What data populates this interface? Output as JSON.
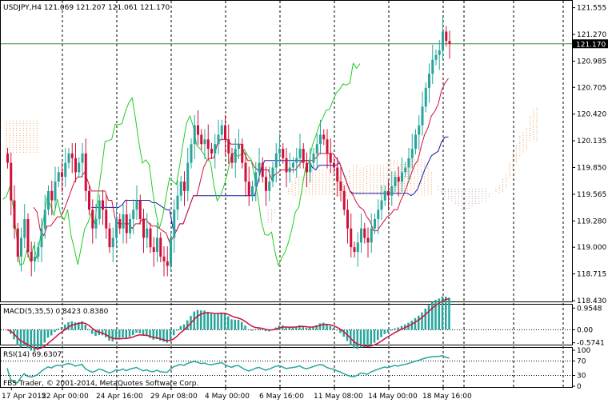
{
  "window": {
    "symbol_line": "USDJPY,H4  121.069 121.207 121.061 121.170",
    "copyright": "FBS Trader, © 2001-2014, MetaQuotes Software Corp."
  },
  "colors": {
    "background": "#ffffff",
    "bull_candle": "#26a69a",
    "bear_candle": "#d0103a",
    "tenkan": "#d0103a",
    "kijun": "#1a1aa8",
    "chikou": "#22cc22",
    "cloud_a": "#e89a5a",
    "cloud_b": "#c8a0a0",
    "macd_hist": "#26a69a",
    "macd_signal": "#d0103a",
    "rsi_line": "#26a69a",
    "current_price_line": "#3a8a3a",
    "grid": "#000000"
  },
  "price_panel": {
    "current_price": "121.170",
    "current_price_value": 121.17,
    "price_min": 118.43,
    "price_max": 121.62,
    "price_labels": [
      "121.555",
      "121.270",
      "120.985",
      "120.705",
      "120.420",
      "120.135",
      "119.850",
      "119.565",
      "119.280",
      "119.000",
      "118.715",
      "118.430"
    ],
    "price_label_values": [
      121.555,
      121.27,
      120.985,
      120.705,
      120.42,
      120.135,
      119.85,
      119.565,
      119.28,
      119.0,
      118.715,
      118.43
    ]
  },
  "macd_panel": {
    "label": "MACD(5,35,5) 0.8423 0.8380",
    "axis_labels": [
      "0.9548",
      "0.00",
      "-0.5741"
    ],
    "axis_values": [
      0.9548,
      0.0,
      -0.5741
    ],
    "min": -0.62,
    "max": 1.0
  },
  "rsi_panel": {
    "label": "RSI(14) 69.6307",
    "axis_labels": [
      "100",
      "70",
      "30",
      "0"
    ],
    "axis_values": [
      100,
      70,
      30,
      0
    ]
  },
  "time_axis": {
    "labels": [
      "17 Apr 2015",
      "22 Apr 00:00",
      "24 Apr 16:00",
      "29 Apr 08:00",
      "4 May 00:00",
      "6 May 16:00",
      "11 May 08:00",
      "14 May 00:00",
      "18 May 16:00"
    ],
    "label_bars": [
      1,
      16,
      32,
      48,
      64,
      80,
      96,
      112,
      128
    ]
  },
  "chart_data": {
    "type": "candlestick",
    "symbol": "USDJPY",
    "timeframe": "H4",
    "ohlc_last": {
      "open": 121.069,
      "high": 121.207,
      "low": 121.061,
      "close": 121.17
    },
    "closes": [
      119.9,
      119.5,
      119.2,
      118.9,
      119.1,
      119.3,
      118.95,
      118.85,
      118.9,
      119.0,
      119.2,
      119.4,
      119.6,
      119.5,
      119.7,
      119.8,
      119.75,
      119.9,
      120.0,
      119.95,
      119.8,
      119.9,
      120.0,
      119.6,
      119.4,
      119.2,
      119.3,
      119.5,
      119.4,
      119.2,
      119.0,
      119.1,
      119.3,
      119.2,
      119.35,
      119.15,
      119.3,
      119.4,
      119.5,
      119.3,
      119.1,
      119.2,
      119.0,
      118.95,
      119.1,
      118.9,
      118.85,
      118.8,
      119.1,
      119.4,
      119.55,
      119.7,
      119.6,
      119.9,
      120.1,
      120.3,
      120.2,
      120.1,
      120.15,
      120.05,
      120.0,
      120.1,
      120.2,
      120.3,
      120.15,
      120.0,
      119.9,
      120.05,
      120.1,
      119.9,
      119.7,
      119.55,
      119.65,
      119.8,
      119.9,
      119.75,
      119.6,
      119.7,
      119.85,
      120.0,
      120.05,
      119.95,
      119.8,
      119.85,
      119.9,
      119.95,
      120.05,
      119.9,
      119.8,
      119.9,
      120.0,
      120.1,
      120.2,
      120.15,
      120.0,
      119.9,
      119.85,
      119.7,
      119.6,
      119.4,
      119.2,
      119.0,
      118.95,
      119.05,
      119.2,
      119.1,
      119.05,
      119.2,
      119.3,
      119.4,
      119.5,
      119.6,
      119.55,
      119.65,
      119.75,
      119.7,
      119.8,
      119.85,
      119.95,
      120.05,
      120.2,
      120.3,
      120.5,
      120.7,
      120.85,
      121.0,
      121.05,
      121.1,
      121.3,
      121.2,
      121.17
    ],
    "macd_hist_note": "MACD histogram and signal follow the price trend"
  }
}
